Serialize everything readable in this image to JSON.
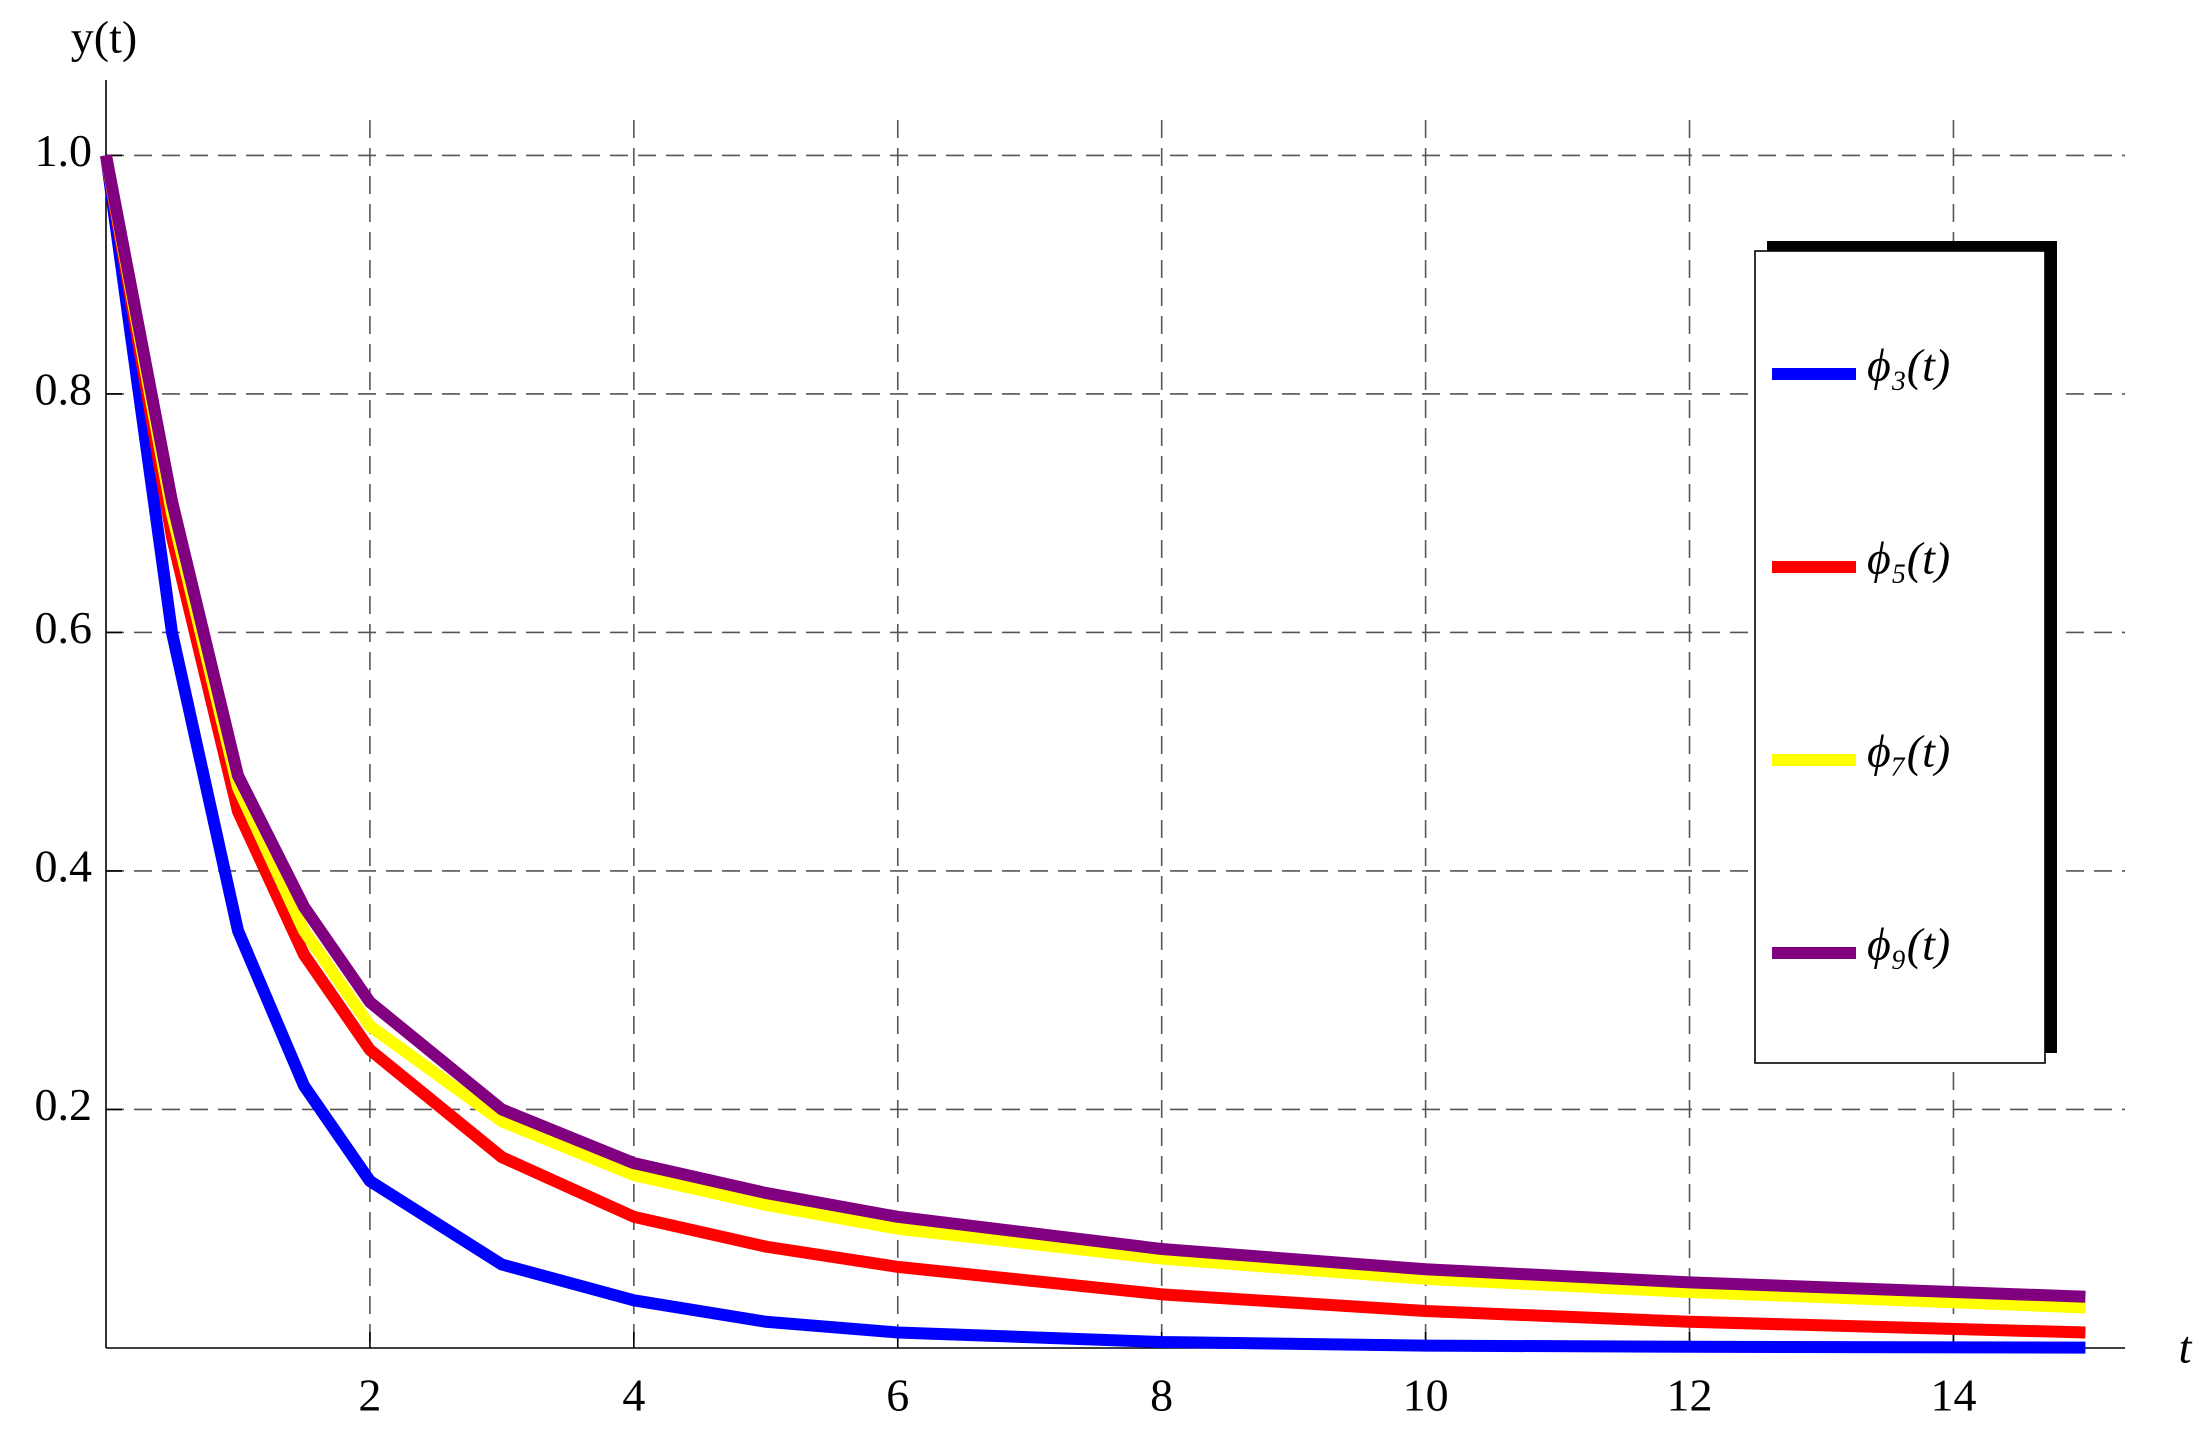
{
  "chart_data": {
    "type": "line",
    "y_label": "y(t)",
    "x_label": "t",
    "x": [
      0,
      0.5,
      1,
      1.5,
      2,
      3,
      4,
      5,
      6,
      8,
      10,
      12,
      15
    ],
    "series": [
      {
        "name": "ϕ₃(t)",
        "color": "#0000ff",
        "values": [
          1,
          0.6,
          0.35,
          0.22,
          0.14,
          0.07,
          0.04,
          0.022,
          0.013,
          0.005,
          0.002,
          0.001,
          0.0003
        ]
      },
      {
        "name": "ϕ₅(t)",
        "color": "#ff0000",
        "values": [
          1,
          0.68,
          0.45,
          0.33,
          0.25,
          0.16,
          0.11,
          0.085,
          0.068,
          0.045,
          0.031,
          0.022,
          0.013
        ]
      },
      {
        "name": "ϕ₇(t)",
        "color": "#ffff00",
        "values": [
          1,
          0.7,
          0.47,
          0.35,
          0.27,
          0.19,
          0.145,
          0.12,
          0.1,
          0.075,
          0.058,
          0.047,
          0.034
        ]
      },
      {
        "name": "ϕ₉(t)",
        "color": "#800080",
        "values": [
          1,
          0.71,
          0.48,
          0.37,
          0.29,
          0.2,
          0.155,
          0.13,
          0.11,
          0.083,
          0.066,
          0.055,
          0.043
        ]
      }
    ],
    "xlim": [
      0,
      15.3
    ],
    "ylim": [
      0,
      1.08
    ],
    "xticks": [
      2,
      4,
      6,
      8,
      10,
      12,
      14
    ],
    "yticks": [
      0.2,
      0.4,
      0.6,
      0.8,
      {
        "value": 1,
        "label": "1.0"
      }
    ],
    "grid": true,
    "legend": "right"
  }
}
